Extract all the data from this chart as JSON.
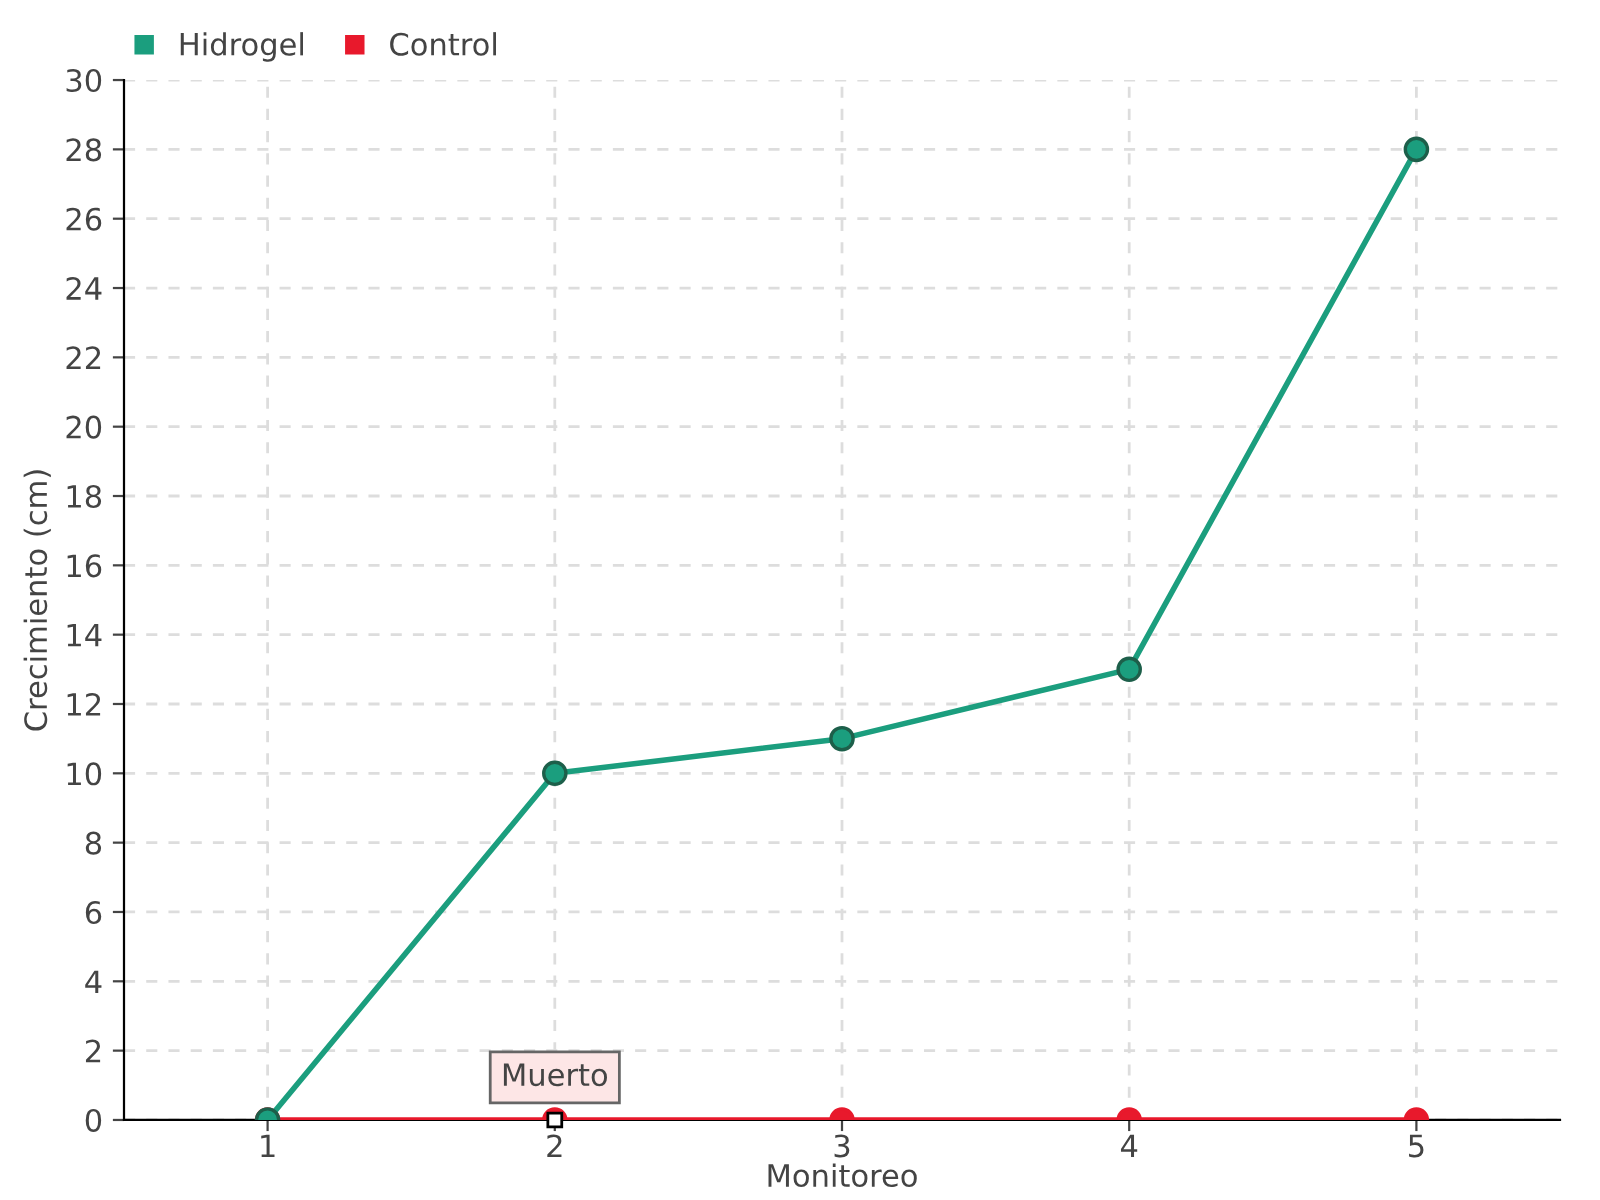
{
  "chart_data": {
    "type": "line",
    "xlabel": "Monitoreo",
    "ylabel": "Crecimiento (cm)",
    "categories": [
      "1",
      "2",
      "3",
      "4",
      "5"
    ],
    "series": [
      {
        "name": "Hidrogel",
        "color": "#1b9e7e",
        "values": [
          0,
          10,
          11,
          13,
          28
        ]
      },
      {
        "name": "Control",
        "color": "#e8192c",
        "values": [
          0,
          0,
          0,
          0,
          0
        ]
      }
    ],
    "ylim": [
      0,
      30
    ],
    "yticks": [
      0,
      2,
      4,
      6,
      8,
      10,
      12,
      14,
      16,
      18,
      20,
      22,
      24,
      26,
      28,
      30
    ],
    "annotations": [
      {
        "text": "Muerto",
        "x": "2",
        "y": 0
      }
    ],
    "grid": true,
    "legend": "top left",
    "marker": "circle",
    "line_style": "solid"
  }
}
